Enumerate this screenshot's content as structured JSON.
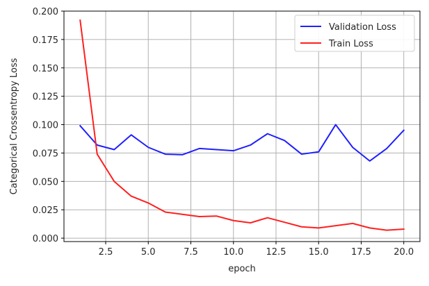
{
  "chart_data": {
    "type": "line",
    "title": "",
    "xlabel": "epoch",
    "ylabel": "Categorical Crossentropy Loss",
    "xlim": [
      0.05,
      20.95
    ],
    "ylim": [
      -0.003,
      0.2
    ],
    "xticks": [
      2.5,
      5.0,
      7.5,
      10.0,
      12.5,
      15.0,
      17.5,
      20.0
    ],
    "xtick_labels": [
      "2.5",
      "5.0",
      "7.5",
      "10.0",
      "12.5",
      "15.0",
      "17.5",
      "20.0"
    ],
    "yticks": [
      0.0,
      0.025,
      0.05,
      0.075,
      0.1,
      0.125,
      0.15,
      0.175,
      0.2
    ],
    "ytick_labels": [
      "0.000",
      "0.025",
      "0.050",
      "0.075",
      "0.100",
      "0.125",
      "0.150",
      "0.175",
      "0.200"
    ],
    "grid": true,
    "legend_position": "top-right",
    "x": [
      1,
      2,
      3,
      4,
      5,
      6,
      7,
      8,
      9,
      10,
      11,
      12,
      13,
      14,
      15,
      16,
      17,
      18,
      19,
      20
    ],
    "series": [
      {
        "name": "Validation Loss",
        "color": "#1f1fff",
        "values": [
          0.099,
          0.082,
          0.078,
          0.091,
          0.08,
          0.074,
          0.0735,
          0.079,
          0.078,
          0.077,
          0.082,
          0.092,
          0.086,
          0.074,
          0.076,
          0.1,
          0.08,
          0.068,
          0.079,
          0.095
        ]
      },
      {
        "name": "Train Loss",
        "color": "#ff1f1f",
        "values": [
          0.192,
          0.074,
          0.05,
          0.037,
          0.031,
          0.023,
          0.021,
          0.019,
          0.0195,
          0.0155,
          0.0135,
          0.018,
          0.014,
          0.01,
          0.009,
          0.011,
          0.013,
          0.009,
          0.007,
          0.008
        ]
      }
    ]
  }
}
